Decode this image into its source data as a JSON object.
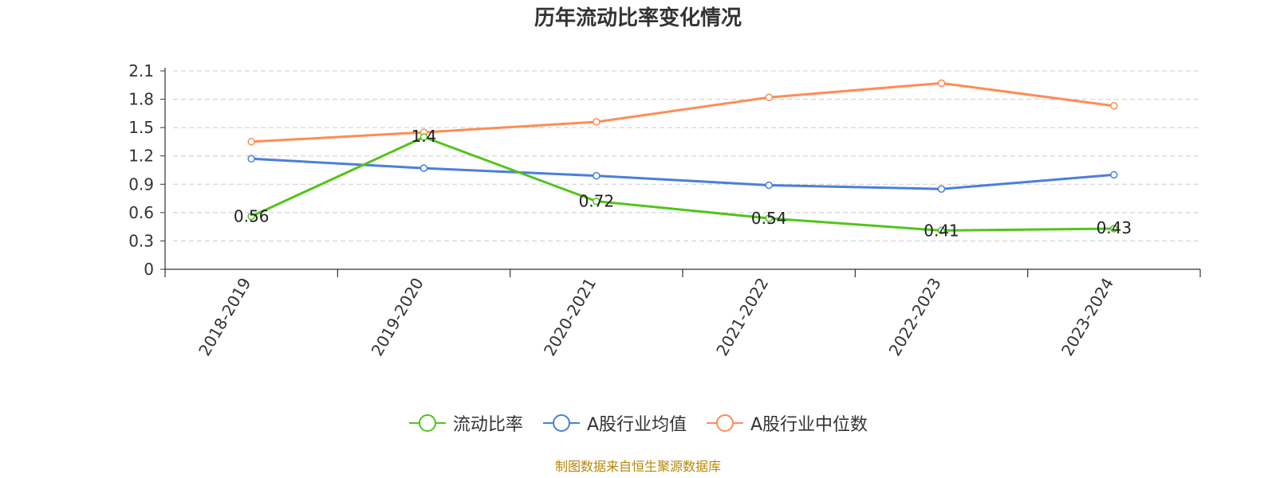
{
  "chart_data": {
    "type": "line",
    "title": "历年流动比率变化情况",
    "categories": [
      "2018-2019",
      "2019-2020",
      "2020-2021",
      "2021-2022",
      "2022-2023",
      "2023-2024"
    ],
    "series": [
      {
        "name": "流动比率",
        "color": "#52c41a",
        "values": [
          0.56,
          1.4,
          0.72,
          0.54,
          0.41,
          0.43
        ],
        "data_labels": [
          "0.56",
          "1.4",
          "0.72",
          "0.54",
          "0.41",
          "0.43"
        ]
      },
      {
        "name": "A股行业均值",
        "color": "#4a7fdb",
        "values": [
          1.17,
          1.07,
          0.99,
          0.89,
          0.85,
          1.0
        ]
      },
      {
        "name": "A股行业中位数",
        "color": "#ff8c55",
        "values": [
          1.35,
          1.45,
          1.56,
          1.82,
          1.97,
          1.73
        ]
      }
    ],
    "y_ticks": [
      "0",
      "0.3",
      "0.6",
      "0.9",
      "1.2",
      "1.5",
      "1.8",
      "2.1"
    ],
    "ylim": [
      0,
      2.1
    ],
    "grid": "horizontal-dashed",
    "legend_position": "bottom"
  },
  "source": "制图数据来自恒生聚源数据库"
}
